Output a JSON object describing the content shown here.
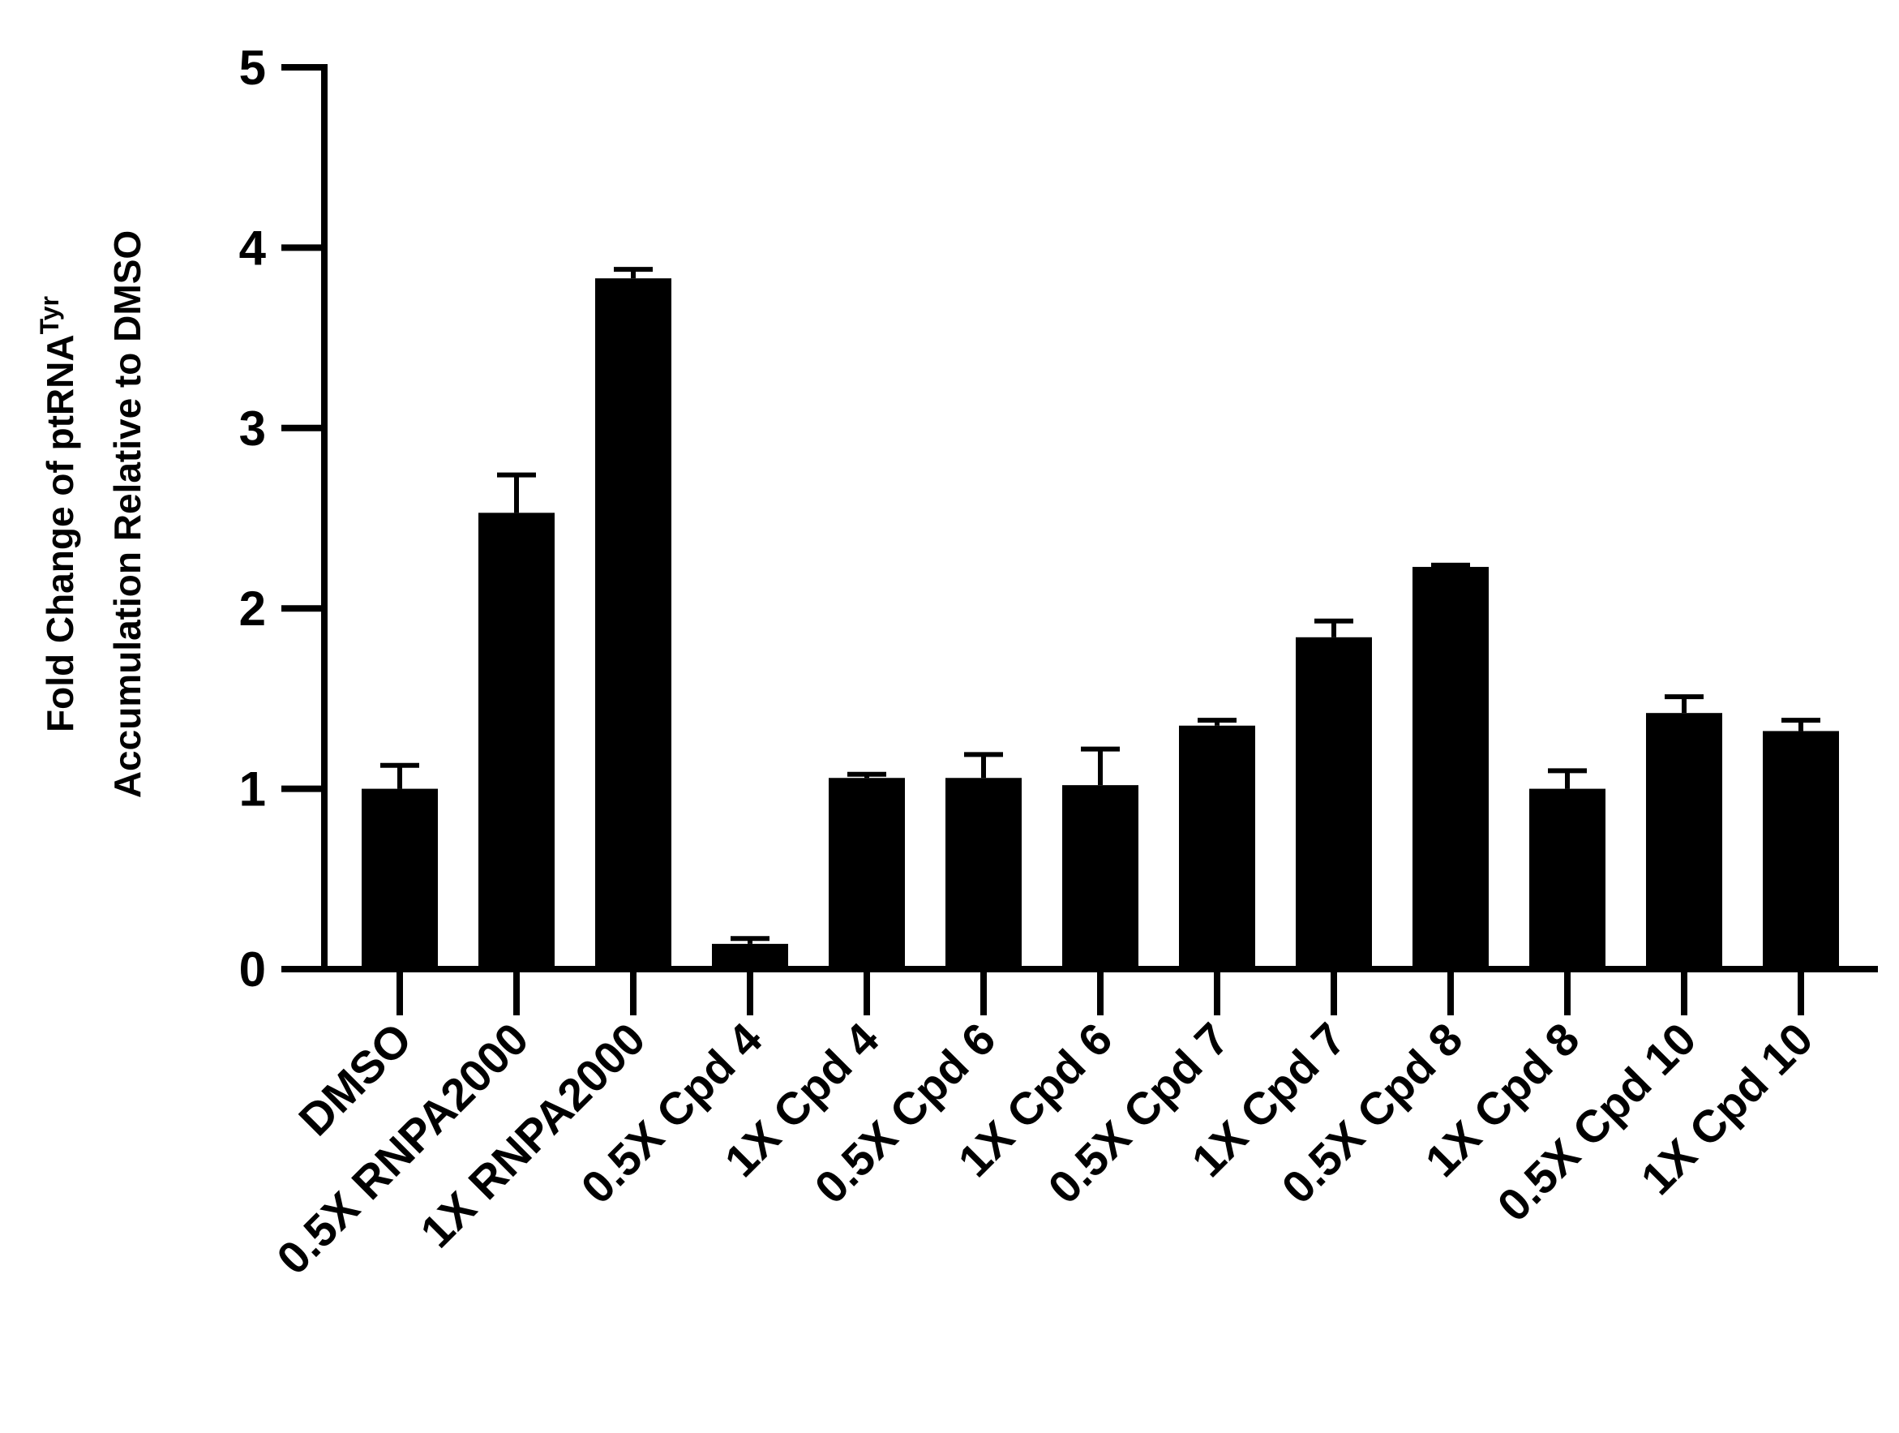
{
  "chart_data": {
    "type": "bar",
    "ylabel": {
      "line1": "Fold Change of ptRNA",
      "superscript": "Tyr",
      "line2": "Accumulation Relative to DMSO"
    },
    "categories": [
      "DMSO",
      "0.5X RNPA2000",
      "1X RNPA2000",
      "0.5X Cpd 4",
      "1X Cpd 4",
      "0.5X Cpd 6",
      "1X Cpd 6",
      "0.5X Cpd 7",
      "1X Cpd 7",
      "0.5X Cpd 8",
      "1X Cpd 8",
      "0.5X Cpd 10",
      "1X Cpd 10"
    ],
    "values": [
      1.0,
      2.53,
      3.83,
      0.14,
      1.06,
      1.06,
      1.02,
      1.35,
      1.84,
      2.23,
      1.0,
      1.42,
      1.32
    ],
    "errors": [
      0.13,
      0.21,
      0.05,
      0.03,
      0.02,
      0.13,
      0.2,
      0.03,
      0.09,
      0.01,
      0.1,
      0.09,
      0.06
    ],
    "color": "#000000",
    "ylim": [
      0,
      5
    ],
    "yticks": [
      0,
      1,
      2,
      3,
      4,
      5
    ],
    "grid": false
  }
}
